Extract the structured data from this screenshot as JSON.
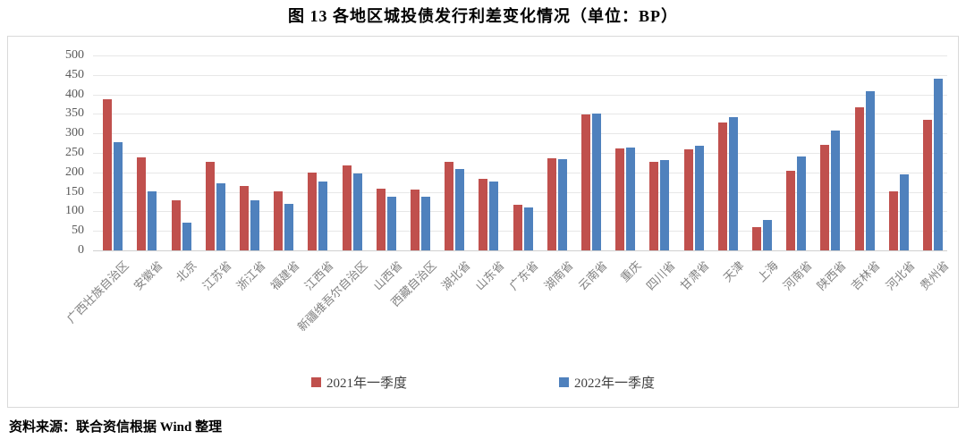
{
  "title": "图 13   各地区城投债发行利差变化情况（单位：BP）",
  "footer": {
    "source": "资料来源：联合资信根据 Wind 整理"
  },
  "colors": {
    "series_2021": "#c0504d",
    "series_2022": "#4f81bd",
    "gridline": "#e7e7e7",
    "axis_label": "#595959",
    "category_label": "#828282",
    "box_border": "#d9d9d9"
  },
  "chart_data": {
    "type": "bar",
    "title": "图 13   各地区城投债发行利差变化情况（单位：BP）",
    "xlabel": "",
    "ylabel": "",
    "ylim": [
      0,
      500
    ],
    "ytick_step": 50,
    "yticks": [
      0,
      50,
      100,
      150,
      200,
      250,
      300,
      350,
      400,
      450,
      500
    ],
    "grid": "horizontal",
    "legend_position": "bottom",
    "categories": [
      "广西壮族自治区",
      "安徽省",
      "北京",
      "江苏省",
      "浙江省",
      "福建省",
      "江西省",
      "新疆维吾尔自治区",
      "山西省",
      "西藏自治区",
      "湖北省",
      "山东省",
      "广东省",
      "湖南省",
      "云南省",
      "重庆",
      "四川省",
      "甘肃省",
      "天津",
      "上海",
      "河南省",
      "陕西省",
      "吉林省",
      "河北省",
      "贵州省"
    ],
    "series": [
      {
        "name": "2021年一季度",
        "color": "#c0504d",
        "values": [
          387,
          239,
          129,
          227,
          166,
          152,
          200,
          219,
          158,
          156,
          228,
          184,
          116,
          237,
          348,
          262,
          227,
          259,
          328,
          60,
          205,
          270,
          367,
          152,
          334
        ]
      },
      {
        "name": "2022年一季度",
        "color": "#4f81bd",
        "values": [
          277,
          151,
          71,
          171,
          128,
          120,
          176,
          197,
          138,
          138,
          208,
          177,
          109,
          234,
          350,
          264,
          232,
          269,
          341,
          79,
          241,
          307,
          409,
          196,
          440
        ]
      }
    ]
  }
}
